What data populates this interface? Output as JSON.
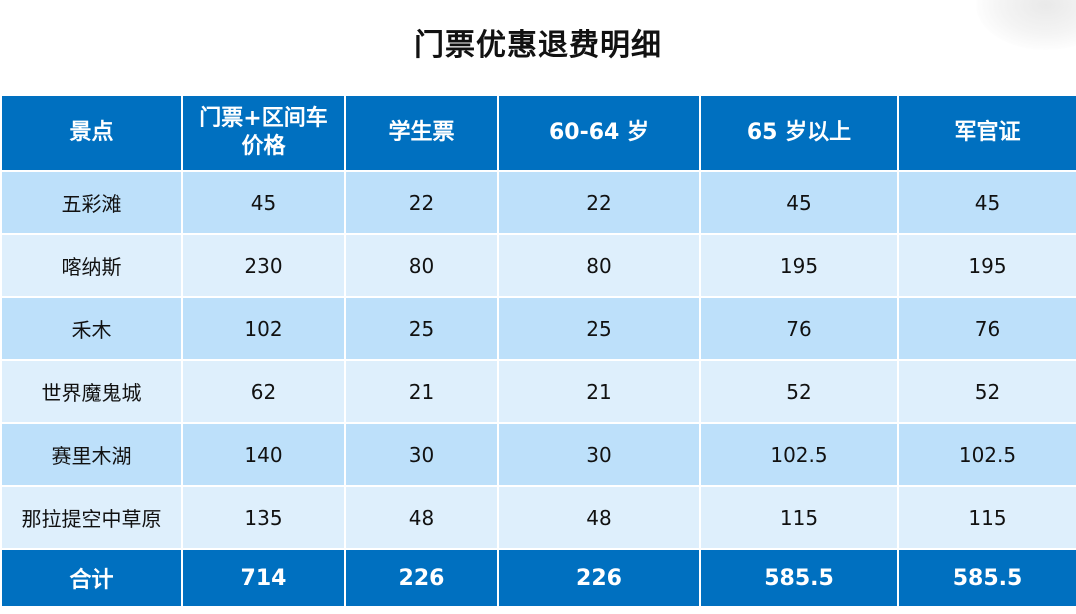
{
  "title": "门票优惠退费明细",
  "table": {
    "headers": [
      "景点",
      "门票+区间车价格",
      "学生票",
      "60-64 岁",
      "65 岁以上",
      "军官证"
    ],
    "rows": [
      [
        "五彩滩",
        "45",
        "22",
        "22",
        "45",
        "45"
      ],
      [
        "喀纳斯",
        "230",
        "80",
        "80",
        "195",
        "195"
      ],
      [
        "禾木",
        "102",
        "25",
        "25",
        "76",
        "76"
      ],
      [
        "世界魔鬼城",
        "62",
        "21",
        "21",
        "52",
        "52"
      ],
      [
        "赛里木湖",
        "140",
        "30",
        "30",
        "102.5",
        "102.5"
      ],
      [
        "那拉提空中草原",
        "135",
        "48",
        "48",
        "115",
        "115"
      ]
    ],
    "total": [
      "合计",
      "714",
      "226",
      "226",
      "585.5",
      "585.5"
    ]
  },
  "colors": {
    "header_bg": "#0070c0",
    "row_odd_bg": "#bde0fa",
    "row_even_bg": "#deeffc",
    "header_text": "#ffffff"
  }
}
